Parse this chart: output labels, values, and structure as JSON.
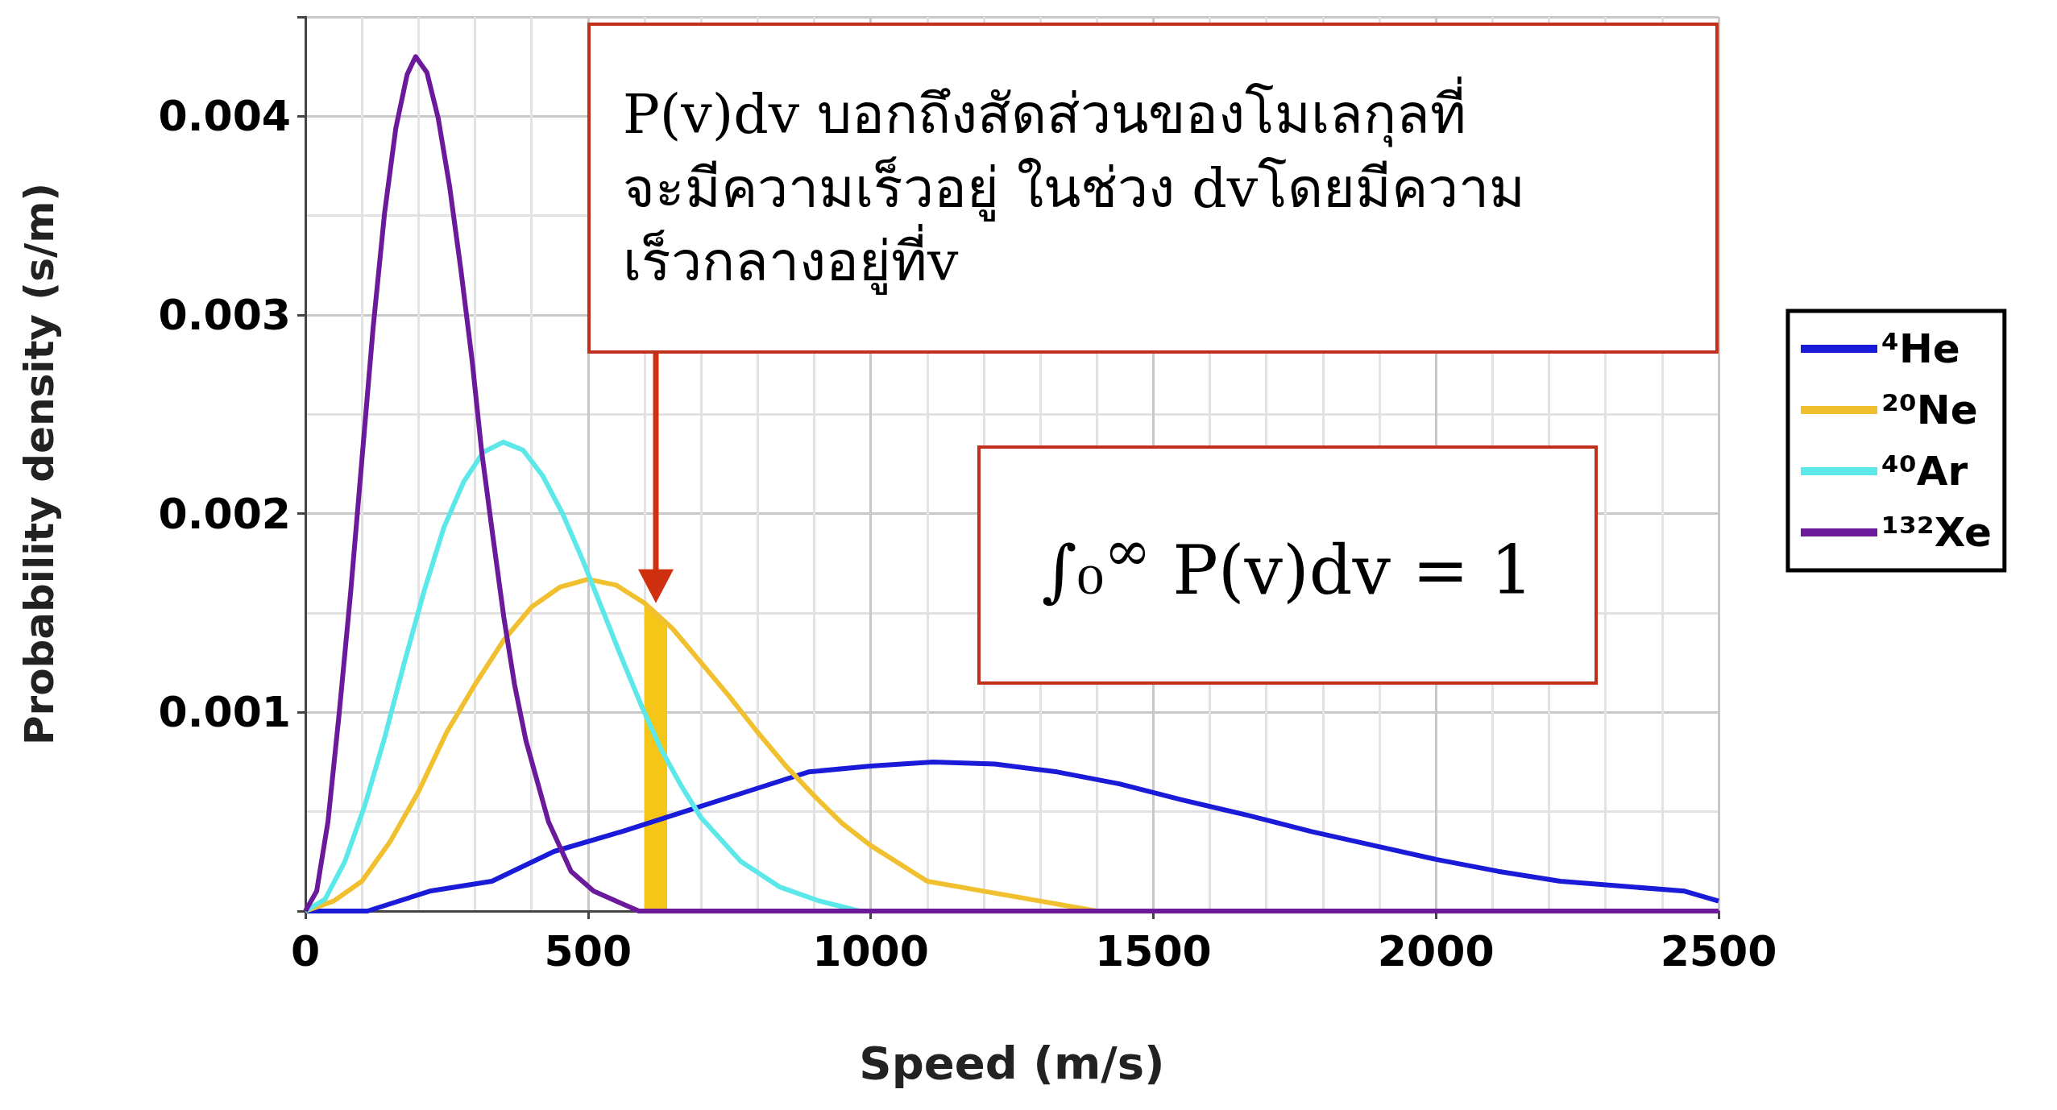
{
  "chart_data": {
    "type": "line",
    "xlabel": "Speed (m/s)",
    "ylabel": "Probability density (s/m)",
    "xlim": [
      0,
      2500
    ],
    "xticks": [
      0,
      500,
      1000,
      1500,
      2000,
      2500
    ],
    "ylim": [
      0,
      0.0045
    ],
    "yticks": [
      0.001,
      0.002,
      0.003,
      0.004
    ],
    "grid": true,
    "legend": "right",
    "series": [
      {
        "name": "⁴He",
        "color": "#1a1ad9",
        "x": [
          0,
          110,
          220,
          330,
          440,
          560,
          670,
          780,
          890,
          1000,
          1110,
          1220,
          1330,
          1440,
          1550,
          1670,
          1780,
          1890,
          2000,
          2110,
          2220,
          2440,
          2500
        ],
        "values": [
          0,
          0,
          0.0001,
          0.00015,
          0.0003,
          0.0004,
          0.0005,
          0.0006,
          0.0007,
          0.00073,
          0.00075,
          0.00074,
          0.0007,
          0.00064,
          0.00056,
          0.00048,
          0.0004,
          0.00033,
          0.00026,
          0.0002,
          0.00015,
          0.0001,
          5e-05
        ]
      },
      {
        "name": "²⁰Ne",
        "color": "#f0c030",
        "x": [
          0,
          50,
          100,
          150,
          200,
          250,
          300,
          350,
          400,
          450,
          500,
          550,
          600,
          650,
          700,
          750,
          800,
          850,
          900,
          950,
          1000,
          1100,
          1200,
          1300,
          1400,
          1500,
          2500
        ],
        "values": [
          0,
          5e-05,
          0.00015,
          0.00035,
          0.0006,
          0.0009,
          0.00114,
          0.00136,
          0.00153,
          0.00163,
          0.00167,
          0.00164,
          0.00155,
          0.00142,
          0.00125,
          0.00108,
          0.0009,
          0.00073,
          0.00058,
          0.00044,
          0.00033,
          0.00015,
          0.0001,
          5e-05,
          0,
          0,
          0
        ]
      },
      {
        "name": "⁴⁰Ar",
        "color": "#5ce8e8",
        "x": [
          0,
          35,
          70,
          105,
          140,
          175,
          210,
          245,
          280,
          315,
          350,
          385,
          420,
          455,
          490,
          525,
          560,
          595,
          630,
          665,
          700,
          770,
          840,
          910,
          980
        ],
        "values": [
          0,
          6e-05,
          0.00025,
          0.00053,
          0.00087,
          0.00125,
          0.00161,
          0.00193,
          0.00216,
          0.00231,
          0.00236,
          0.00232,
          0.00219,
          0.002,
          0.00177,
          0.00152,
          0.00127,
          0.00103,
          0.00081,
          0.00063,
          0.00047,
          0.00025,
          0.00012,
          5e-05,
          0
        ]
      },
      {
        "name": "¹³²Xe",
        "color": "#6a1a9a",
        "x": [
          0,
          20,
          40,
          60,
          80,
          100,
          120,
          140,
          160,
          180,
          195,
          215,
          235,
          255,
          275,
          295,
          312,
          332,
          351,
          370,
          390,
          430,
          470,
          510,
          550,
          590,
          700,
          2500
        ],
        "values": [
          0,
          0.0001,
          0.00045,
          0.001,
          0.0016,
          0.00227,
          0.00294,
          0.00351,
          0.00394,
          0.00421,
          0.0043,
          0.00422,
          0.00399,
          0.00365,
          0.00323,
          0.00277,
          0.00231,
          0.00188,
          0.00148,
          0.00114,
          0.00086,
          0.00045,
          0.0002,
          0.0001,
          5e-05,
          0,
          0,
          0
        ]
      },
      {
        "type": "area",
        "color": "#f5c518",
        "x": [
          600,
          640
        ],
        "values": [
          0.00155,
          0.00144
        ]
      }
    ],
    "annotations": [
      "P(v)dv บอกถึงสัดส่วนของโมเลกุลที่\nจะมีความเร็วอยู่ ในช่วง dvโดยมีความ\nเร็วกลางอยู่ที่v",
      "∫₀$^{∞}$ P(v)dv = 1"
    ]
  }
}
